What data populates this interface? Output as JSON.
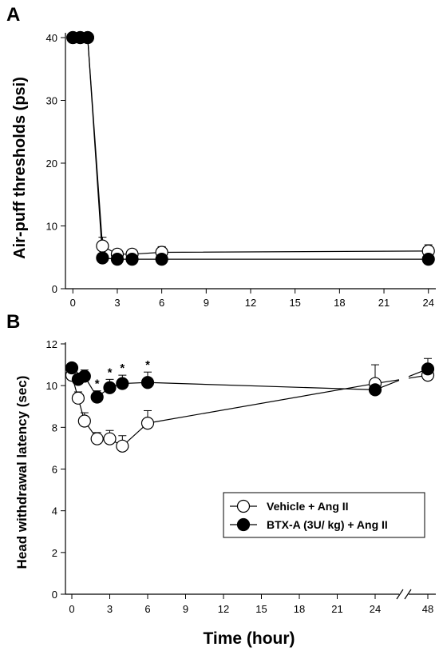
{
  "chart_data": [
    {
      "panel": "A",
      "type": "line",
      "ylabel": "Air-puff thresholds (psi)",
      "xlabel": "",
      "xlim": [
        -0.5,
        24.5
      ],
      "ylim": [
        0,
        40
      ],
      "xticks": [
        0,
        3,
        6,
        9,
        12,
        15,
        18,
        21,
        24
      ],
      "yticks": [
        0,
        10,
        20,
        30,
        40
      ],
      "series": [
        {
          "name": "Vehicle + Ang II",
          "marker": "open-circle",
          "x": [
            0,
            0.5,
            1,
            2,
            3,
            4,
            6,
            24
          ],
          "y": [
            40,
            40,
            40,
            6.8,
            5.5,
            5.5,
            5.8,
            6.0
          ],
          "err": [
            0,
            0,
            0,
            1.4,
            0.8,
            0.8,
            0.9,
            1.0
          ]
        },
        {
          "name": "BTX-A (3U/ kg) + Ang II",
          "marker": "filled-circle",
          "x": [
            0,
            0.5,
            1,
            2,
            3,
            4,
            6,
            24
          ],
          "y": [
            40,
            40,
            40,
            4.9,
            4.7,
            4.7,
            4.7,
            4.7
          ],
          "err": [
            0,
            0,
            0,
            0,
            0,
            0,
            0,
            0
          ]
        }
      ]
    },
    {
      "panel": "B",
      "type": "line",
      "ylabel": "Head withdrawal latency (sec)",
      "xlabel": "Time (hour)",
      "ylim": [
        0,
        12
      ],
      "xticks": [
        "0",
        "3",
        "6",
        "9",
        "12",
        "15",
        "18",
        "21",
        "24",
        "48"
      ],
      "yticks": [
        0,
        2,
        4,
        6,
        8,
        10,
        12
      ],
      "axis_break": "between 24 and 48",
      "legend": {
        "placement": "bottom-right"
      },
      "significance": {
        "symbol": "*",
        "x": [
          2,
          3,
          4,
          6
        ]
      },
      "series": [
        {
          "name": "Vehicle + Ang II",
          "marker": "open-circle",
          "x": [
            0,
            0.5,
            1,
            2,
            3,
            4,
            6,
            24,
            48
          ],
          "y": [
            10.5,
            9.4,
            8.3,
            7.45,
            7.45,
            7.1,
            8.2,
            10.1,
            10.5
          ],
          "err": [
            0.2,
            0.3,
            0.4,
            0.3,
            0.4,
            0.5,
            0.6,
            0.9,
            0.3
          ]
        },
        {
          "name": "BTX-A (3U/ kg) + Ang II",
          "marker": "filled-circle",
          "x": [
            0,
            0.5,
            1,
            2,
            3,
            4,
            6,
            24,
            48
          ],
          "y": [
            10.85,
            10.3,
            10.45,
            9.45,
            9.9,
            10.1,
            10.15,
            9.8,
            10.8
          ],
          "err": [
            0.1,
            0.3,
            0.3,
            0.3,
            0.4,
            0.4,
            0.5,
            0.2,
            0.5
          ]
        }
      ]
    }
  ]
}
